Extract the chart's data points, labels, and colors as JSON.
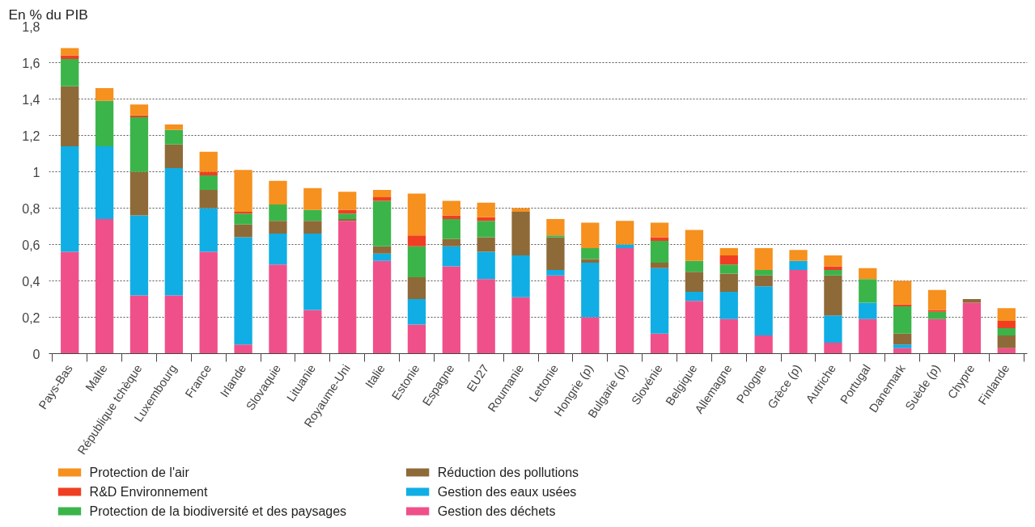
{
  "chart_data": {
    "type": "bar",
    "stacked": true,
    "ylabel": "En % du PIB",
    "categories": [
      "Pays-Bas",
      "Malte",
      "République tchèque",
      "Luxembourg",
      "France",
      "Irlande",
      "Slovaquie",
      "Lituanie",
      "Royaume-Uni",
      "Italie",
      "Estonie",
      "Espagne",
      "EU27",
      "Roumanie",
      "Lettonie",
      "Hongrie (p)",
      "Bulgarie (p)",
      "Slovénie",
      "Belgique",
      "Allemagne",
      "Pologne",
      "Grèce (p)",
      "Autriche",
      "Portugal",
      "Danemark",
      "Suède (p)",
      "Chypre",
      "Finlande"
    ],
    "series": [
      {
        "name": "Gestion des déchets",
        "color": "#f0508a",
        "values": [
          0.56,
          0.74,
          0.32,
          0.32,
          0.56,
          0.05,
          0.49,
          0.24,
          0.73,
          0.51,
          0.16,
          0.48,
          0.41,
          0.31,
          0.43,
          0.2,
          0.58,
          0.11,
          0.29,
          0.19,
          0.1,
          0.46,
          0.06,
          0.19,
          0.03,
          0.19,
          0.28,
          0.03
        ]
      },
      {
        "name": "Gestion des eaux usées",
        "color": "#10aee4",
        "values": [
          0.58,
          0.4,
          0.44,
          0.7,
          0.24,
          0.59,
          0.17,
          0.42,
          0,
          0.04,
          0.14,
          0.11,
          0.15,
          0.23,
          0.03,
          0.3,
          0.02,
          0.36,
          0.05,
          0.15,
          0.27,
          0.05,
          0.15,
          0.09,
          0.02,
          0,
          0,
          0
        ]
      },
      {
        "name": "Réduction des pollutions",
        "color": "#8e6a38",
        "values": [
          0.33,
          0,
          0.24,
          0.13,
          0.1,
          0.07,
          0.07,
          0.07,
          0.01,
          0.04,
          0.12,
          0.04,
          0.08,
          0.24,
          0.18,
          0.02,
          0,
          0.03,
          0.11,
          0.1,
          0.06,
          0,
          0.22,
          0,
          0.06,
          0,
          0.02,
          0.07
        ]
      },
      {
        "name": "Protection de la biodiversité et des paysages",
        "color": "#3bb54a",
        "values": [
          0.15,
          0.25,
          0.3,
          0.08,
          0.08,
          0.06,
          0.09,
          0.06,
          0.03,
          0.25,
          0.17,
          0.11,
          0.09,
          0,
          0.01,
          0.06,
          0,
          0.12,
          0.06,
          0.05,
          0.03,
          0,
          0.03,
          0.13,
          0.15,
          0.04,
          0,
          0.04
        ]
      },
      {
        "name": "R&D Environnement",
        "color": "#f03e23",
        "values": [
          0.02,
          0,
          0.01,
          0,
          0.02,
          0.01,
          0,
          0,
          0.02,
          0.02,
          0.06,
          0.02,
          0.02,
          0,
          0,
          0,
          0,
          0.02,
          0,
          0.05,
          0,
          0,
          0.02,
          0,
          0.01,
          0.01,
          0,
          0.04
        ]
      },
      {
        "name": "Protection de l'air",
        "color": "#f6901e",
        "values": [
          0.04,
          0.07,
          0.06,
          0.03,
          0.11,
          0.23,
          0.13,
          0.12,
          0.1,
          0.04,
          0.23,
          0.08,
          0.08,
          0.02,
          0.09,
          0.14,
          0.13,
          0.08,
          0.17,
          0.04,
          0.12,
          0.06,
          0.06,
          0.06,
          0.13,
          0.11,
          0,
          0.07
        ]
      }
    ],
    "ylim": [
      0,
      1.8
    ],
    "yticks": [
      0,
      {
        "value": 0.2,
        "label": "0,2"
      },
      {
        "value": 0.4,
        "label": "0,4"
      },
      {
        "value": 0.6,
        "label": "0,6"
      },
      {
        "value": 0.8,
        "label": "0,8"
      },
      1,
      {
        "value": 1.2,
        "label": "1,2"
      },
      {
        "value": 1.4,
        "label": "1,4"
      },
      {
        "value": 1.6,
        "label": "1,6"
      },
      {
        "value": 1.8,
        "label": "1,8"
      }
    ],
    "grid": "y",
    "legend": "bottom"
  }
}
